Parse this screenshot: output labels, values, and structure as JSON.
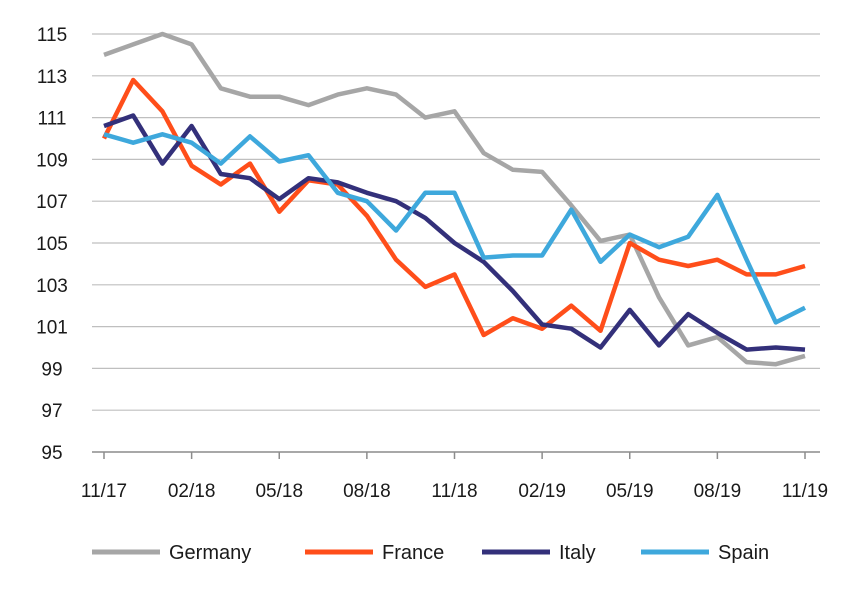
{
  "chart_data": {
    "type": "line",
    "title": "",
    "xlabel": "",
    "ylabel": "",
    "ylim": [
      95,
      115
    ],
    "y_ticks": [
      "115",
      "113",
      "111",
      "109",
      "107",
      "105",
      "103",
      "101",
      "99",
      "97",
      "95"
    ],
    "x_tick_labels": [
      "11/17",
      "02/18",
      "05/18",
      "08/18",
      "11/18",
      "02/19",
      "05/19",
      "08/19",
      "11/19"
    ],
    "x": [
      "11/17",
      "12/17",
      "01/18",
      "02/18",
      "03/18",
      "04/18",
      "05/18",
      "06/18",
      "07/18",
      "08/18",
      "09/18",
      "10/18",
      "11/18",
      "12/18",
      "01/19",
      "02/19",
      "03/19",
      "04/19",
      "05/19",
      "06/19",
      "07/19",
      "08/19",
      "09/19",
      "10/19",
      "11/19"
    ],
    "grid": true,
    "legend_position": "bottom",
    "series": [
      {
        "name": "Germany",
        "color": "#a6a6a6",
        "values": [
          114.0,
          114.5,
          115.0,
          114.5,
          112.4,
          112.0,
          112.0,
          111.6,
          112.1,
          112.4,
          112.1,
          111.0,
          111.3,
          109.3,
          108.5,
          108.4,
          106.8,
          105.1,
          105.4,
          102.4,
          100.1,
          100.5,
          99.3,
          99.2,
          99.6
        ]
      },
      {
        "name": "France",
        "color": "#ff4e1a",
        "values": [
          110.0,
          112.8,
          111.3,
          108.7,
          107.8,
          108.8,
          106.5,
          108.0,
          107.8,
          106.3,
          104.2,
          102.9,
          103.5,
          100.6,
          101.4,
          100.9,
          102.0,
          100.8,
          105.0,
          104.2,
          103.9,
          104.2,
          103.5,
          103.5,
          103.9
        ]
      },
      {
        "name": "Italy",
        "color": "#33307a",
        "values": [
          110.6,
          111.1,
          108.8,
          110.6,
          108.3,
          108.1,
          107.1,
          108.1,
          107.9,
          107.4,
          107.0,
          106.2,
          105.0,
          104.1,
          102.7,
          101.1,
          100.9,
          100.0,
          101.8,
          100.1,
          101.6,
          100.7,
          99.9,
          100.0,
          99.9
        ]
      },
      {
        "name": "Spain",
        "color": "#3ea8dc",
        "values": [
          110.2,
          109.8,
          110.2,
          109.8,
          108.8,
          110.1,
          108.9,
          109.2,
          107.4,
          107.0,
          105.6,
          107.4,
          107.4,
          104.3,
          104.4,
          104.4,
          106.6,
          104.1,
          105.4,
          104.8,
          105.3,
          107.3,
          104.2,
          101.2,
          101.9
        ]
      }
    ]
  }
}
